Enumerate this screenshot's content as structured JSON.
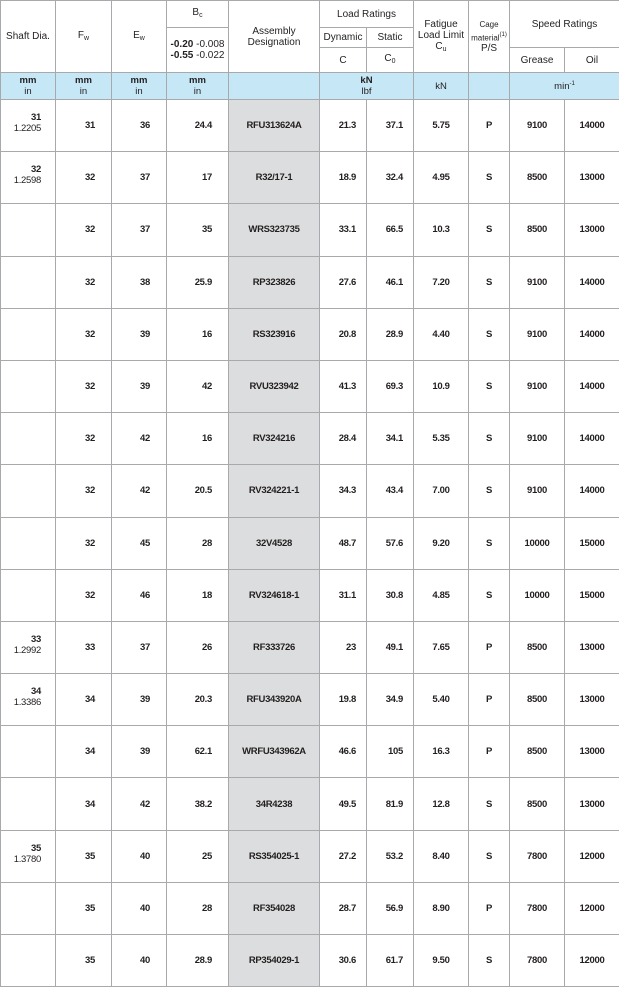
{
  "header": {
    "shaft": "Shaft Dia.",
    "fw": "F",
    "fw_sub": "w",
    "ew": "E",
    "ew_sub": "w",
    "bc": "B",
    "bc_sub": "c",
    "bc_tol_1_mm": "-0.20",
    "bc_tol_1_in": "-0.008",
    "bc_tol_2_mm": "-0.55",
    "bc_tol_2_in": "-0.022",
    "designation": "Assembly Designation",
    "load_ratings": "Load Ratings",
    "dynamic": "Dynamic",
    "static": "Static",
    "c": "C",
    "c0": "C",
    "c0_sub": "0",
    "fatigue": "Fatigue Load Limit",
    "cu": "C",
    "cu_sub": "u",
    "cage": "Cage material",
    "cage_note": "(1)",
    "cage_ps": "P/S",
    "speed_ratings": "Speed Ratings",
    "grease": "Grease",
    "oil": "Oil"
  },
  "units": {
    "mm": "mm",
    "in": "in",
    "kn": "kN",
    "lbf": "lbf",
    "fatigue": "kN",
    "speed": "min",
    "speed_sup": "-1"
  },
  "rows": [
    {
      "shaft_mm": "31",
      "shaft_in": "1.2205",
      "fw": "31",
      "ew": "36",
      "bc": "24.4",
      "designation": "RFU313624A",
      "c": "21.3",
      "c0": "37.1",
      "cu": "5.75",
      "cage": "P",
      "grease": "9100",
      "oil": "14000"
    },
    {
      "shaft_mm": "32",
      "shaft_in": "1.2598",
      "fw": "32",
      "ew": "37",
      "bc": "17",
      "designation": "R32/17-1",
      "c": "18.9",
      "c0": "32.4",
      "cu": "4.95",
      "cage": "S",
      "grease": "8500",
      "oil": "13000"
    },
    {
      "shaft_mm": "",
      "shaft_in": "",
      "fw": "32",
      "ew": "37",
      "bc": "35",
      "designation": "WRS323735",
      "c": "33.1",
      "c0": "66.5",
      "cu": "10.3",
      "cage": "S",
      "grease": "8500",
      "oil": "13000"
    },
    {
      "shaft_mm": "",
      "shaft_in": "",
      "fw": "32",
      "ew": "38",
      "bc": "25.9",
      "designation": "RP323826",
      "c": "27.6",
      "c0": "46.1",
      "cu": "7.20",
      "cage": "S",
      "grease": "9100",
      "oil": "14000"
    },
    {
      "shaft_mm": "",
      "shaft_in": "",
      "fw": "32",
      "ew": "39",
      "bc": "16",
      "designation": "RS323916",
      "c": "20.8",
      "c0": "28.9",
      "cu": "4.40",
      "cage": "S",
      "grease": "9100",
      "oil": "14000"
    },
    {
      "shaft_mm": "",
      "shaft_in": "",
      "fw": "32",
      "ew": "39",
      "bc": "42",
      "designation": "RVU323942",
      "c": "41.3",
      "c0": "69.3",
      "cu": "10.9",
      "cage": "S",
      "grease": "9100",
      "oil": "14000"
    },
    {
      "shaft_mm": "",
      "shaft_in": "",
      "fw": "32",
      "ew": "42",
      "bc": "16",
      "designation": "RV324216",
      "c": "28.4",
      "c0": "34.1",
      "cu": "5.35",
      "cage": "S",
      "grease": "9100",
      "oil": "14000"
    },
    {
      "shaft_mm": "",
      "shaft_in": "",
      "fw": "32",
      "ew": "42",
      "bc": "20.5",
      "designation": "RV324221-1",
      "c": "34.3",
      "c0": "43.4",
      "cu": "7.00",
      "cage": "S",
      "grease": "9100",
      "oil": "14000"
    },
    {
      "shaft_mm": "",
      "shaft_in": "",
      "fw": "32",
      "ew": "45",
      "bc": "28",
      "designation": "32V4528",
      "c": "48.7",
      "c0": "57.6",
      "cu": "9.20",
      "cage": "S",
      "grease": "10000",
      "oil": "15000"
    },
    {
      "shaft_mm": "",
      "shaft_in": "",
      "fw": "32",
      "ew": "46",
      "bc": "18",
      "designation": "RV324618-1",
      "c": "31.1",
      "c0": "30.8",
      "cu": "4.85",
      "cage": "S",
      "grease": "10000",
      "oil": "15000"
    },
    {
      "shaft_mm": "33",
      "shaft_in": "1.2992",
      "fw": "33",
      "ew": "37",
      "bc": "26",
      "designation": "RF333726",
      "c": "23",
      "c0": "49.1",
      "cu": "7.65",
      "cage": "P",
      "grease": "8500",
      "oil": "13000"
    },
    {
      "shaft_mm": "34",
      "shaft_in": "1.3386",
      "fw": "34",
      "ew": "39",
      "bc": "20.3",
      "designation": "RFU343920A",
      "c": "19.8",
      "c0": "34.9",
      "cu": "5.40",
      "cage": "P",
      "grease": "8500",
      "oil": "13000"
    },
    {
      "shaft_mm": "",
      "shaft_in": "",
      "fw": "34",
      "ew": "39",
      "bc": "62.1",
      "designation": "WRFU343962A",
      "c": "46.6",
      "c0": "105",
      "cu": "16.3",
      "cage": "P",
      "grease": "8500",
      "oil": "13000"
    },
    {
      "shaft_mm": "",
      "shaft_in": "",
      "fw": "34",
      "ew": "42",
      "bc": "38.2",
      "designation": "34R4238",
      "c": "49.5",
      "c0": "81.9",
      "cu": "12.8",
      "cage": "S",
      "grease": "8500",
      "oil": "13000"
    },
    {
      "shaft_mm": "35",
      "shaft_in": "1.3780",
      "fw": "35",
      "ew": "40",
      "bc": "25",
      "designation": "RS354025-1",
      "c": "27.2",
      "c0": "53.2",
      "cu": "8.40",
      "cage": "S",
      "grease": "7800",
      "oil": "12000"
    },
    {
      "shaft_mm": "",
      "shaft_in": "",
      "fw": "35",
      "ew": "40",
      "bc": "28",
      "designation": "RF354028",
      "c": "28.7",
      "c0": "56.9",
      "cu": "8.90",
      "cage": "P",
      "grease": "7800",
      "oil": "12000"
    },
    {
      "shaft_mm": "",
      "shaft_in": "",
      "fw": "35",
      "ew": "40",
      "bc": "28.9",
      "designation": "RP354029-1",
      "c": "30.6",
      "c0": "61.7",
      "cu": "9.50",
      "cage": "S",
      "grease": "7800",
      "oil": "12000"
    }
  ]
}
